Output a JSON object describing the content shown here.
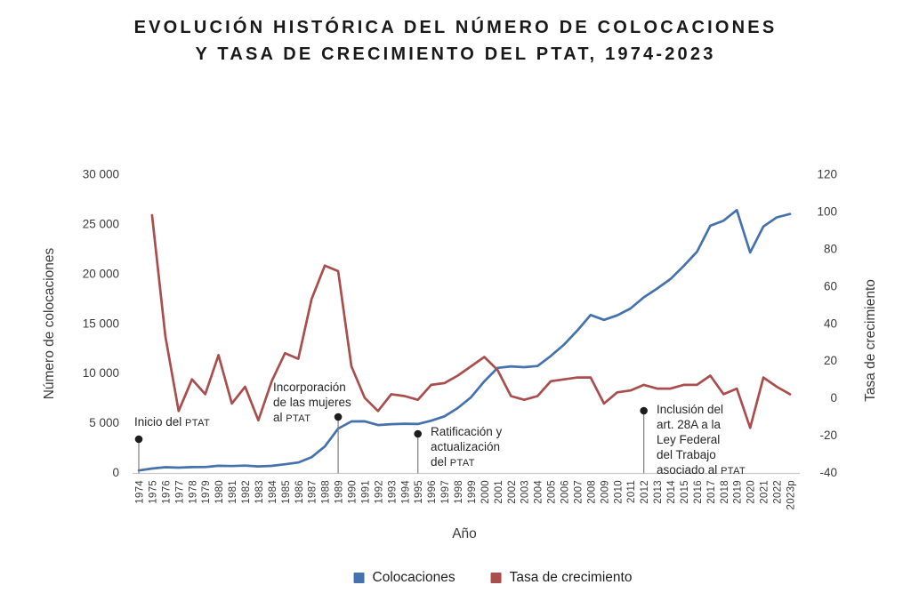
{
  "title": {
    "line1": "EVOLUCIÓN HISTÓRICA DEL NÚMERO DE COLOCACIONES",
    "line2": "Y TASA DE CRECIMIENTO DEL PTAT, 1974-2023"
  },
  "colors": {
    "background": "#ffffff",
    "title_text": "#191919",
    "tick_text": "#3b3b3b",
    "axis_line": "#c8c8c8",
    "annotation_line": "#7d7d7d",
    "annotation_dot": "#1d1d1d",
    "colocaciones_blue": "#4571AD",
    "tasa_red": "#A94D4D"
  },
  "chart_data": {
    "type": "line",
    "grid": false,
    "legend_position": "bottom",
    "x_axis": {
      "label": "Año",
      "categories": [
        "1974",
        "1975",
        "1976",
        "1977",
        "1978",
        "1979",
        "1980",
        "1981",
        "1982",
        "1983",
        "1984",
        "1985",
        "1986",
        "1987",
        "1988",
        "1989",
        "1990",
        "1991",
        "1992",
        "1993",
        "1994",
        "1995",
        "1996",
        "1997",
        "1998",
        "1999",
        "2000",
        "2001",
        "2002",
        "2003",
        "2004",
        "2005",
        "2006",
        "2007",
        "2008",
        "2009",
        "2010",
        "2011",
        "2012",
        "2013",
        "2014",
        "2015",
        "2016",
        "2017",
        "2018",
        "2019",
        "2020",
        "2021",
        "2022",
        "2023p"
      ]
    },
    "left_axis": {
      "label": "Número de colocaciones",
      "range": [
        0,
        30000
      ],
      "ticks": [
        {
          "value": 30000,
          "label": "30 000"
        },
        {
          "value": 25000,
          "label": "25 000"
        },
        {
          "value": 20000,
          "label": "20 000"
        },
        {
          "value": 15000,
          "label": "15 000"
        },
        {
          "value": 10000,
          "label": "10 000"
        },
        {
          "value": 5000,
          "label": "5 000"
        },
        {
          "value": 0,
          "label": "0"
        }
      ]
    },
    "right_axis": {
      "label": "Tasa de crecimiento",
      "range": [
        -40,
        120
      ],
      "ticks": [
        {
          "value": 120,
          "label": "120"
        },
        {
          "value": 100,
          "label": "100"
        },
        {
          "value": 80,
          "label": "80"
        },
        {
          "value": 60,
          "label": "60"
        },
        {
          "value": 40,
          "label": "40"
        },
        {
          "value": 20,
          "label": "20"
        },
        {
          "value": 0,
          "label": "0"
        },
        {
          "value": -20,
          "label": "-20"
        },
        {
          "value": -40,
          "label": "-40"
        }
      ]
    },
    "series": [
      {
        "name": "Colocaciones",
        "axis": "left",
        "color": "#4571AD",
        "values": [
          203,
          402,
          533,
          495,
          543,
          553,
          678,
          655,
          696,
          615,
          672,
          834,
          1007,
          1538,
          2623,
          4414,
          5143,
          5148,
          4778,
          4866,
          4910,
          4886,
          5211,
          5647,
          6486,
          7574,
          9175,
          10529,
          10681,
          10595,
          10708,
          11720,
          12868,
          14288,
          15849,
          15352,
          15809,
          16495,
          17626,
          18499,
          19456,
          20772,
          22202,
          24823,
          25331,
          26399,
          22130,
          24755,
          25660,
          26000
        ]
      },
      {
        "name": "Tasa de crecimiento",
        "axis": "right",
        "color": "#A94D4D",
        "values": [
          null,
          98,
          33,
          -7,
          10,
          2,
          23,
          -3,
          6,
          -12,
          9,
          24,
          21,
          53,
          71,
          68,
          17,
          0,
          -7,
          2,
          1,
          -1,
          7,
          8,
          12,
          17,
          22,
          15,
          1,
          -1,
          1,
          9,
          10,
          11,
          11,
          -3,
          3,
          4,
          7,
          5,
          5,
          7,
          7,
          12,
          2,
          5,
          -16,
          11,
          6,
          2
        ]
      }
    ],
    "annotations": [
      {
        "year": "1974",
        "lines": [
          "Inicio del PTAT"
        ]
      },
      {
        "year": "1989",
        "lines": [
          "Incorporación",
          "de las mujeres",
          "al PTAT"
        ]
      },
      {
        "year": "1995",
        "lines": [
          "Ratificación y",
          "actualización",
          "del PTAT"
        ]
      },
      {
        "year": "2012",
        "lines": [
          "Inclusión del",
          "art. 28A a la",
          "Ley Federal",
          "del Trabajo",
          "asociado al PTAT"
        ]
      }
    ]
  }
}
